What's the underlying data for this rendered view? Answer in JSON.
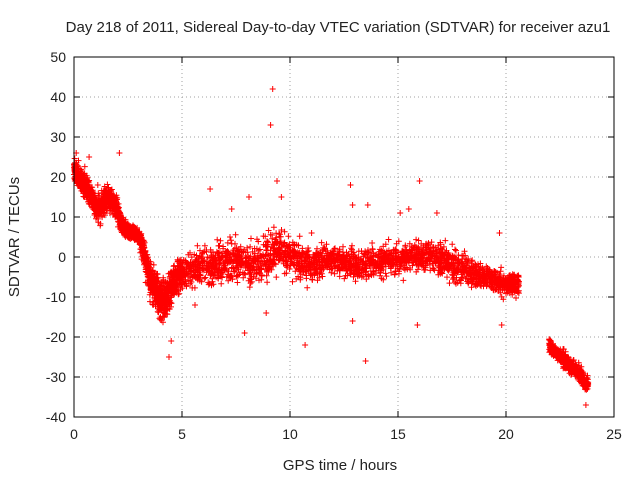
{
  "chart_data": {
    "type": "scatter",
    "title": "Day 218 of 2011, Sidereal Day-to-day VTEC variation (SDTVAR) for receiver azu1",
    "xlabel": "GPS time / hours",
    "ylabel": "SDTVAR / TECUs",
    "xlim": [
      0,
      25
    ],
    "ylim": [
      -40,
      50
    ],
    "xticks": [
      0,
      5,
      10,
      15,
      20,
      25
    ],
    "yticks": [
      -40,
      -30,
      -20,
      -10,
      0,
      10,
      20,
      30,
      40,
      50
    ],
    "grid": true,
    "marker": "+",
    "series_color": "#ff0000",
    "series": [
      {
        "name": "SDTVAR",
        "x": [
          0.0,
          0.2,
          0.4,
          0.6,
          0.8,
          1.0,
          1.2,
          1.4,
          1.6,
          1.8,
          2.0,
          2.2,
          2.4,
          2.6,
          2.8,
          3.0,
          3.2,
          3.4,
          3.6,
          3.8,
          4.0,
          4.2,
          4.4,
          4.6,
          4.8,
          5.0,
          5.5,
          6.0,
          6.5,
          7.0,
          7.5,
          8.0,
          8.5,
          9.0,
          9.5,
          10.0,
          10.5,
          11.0,
          11.5,
          12.0,
          12.5,
          13.0,
          13.5,
          14.0,
          14.5,
          15.0,
          15.5,
          16.0,
          16.5,
          17.0,
          17.5,
          18.0,
          18.5,
          19.0,
          19.5,
          20.0,
          20.3,
          20.6,
          22.0,
          22.3,
          22.6,
          22.9,
          23.2,
          23.5,
          23.8
        ],
        "y": [
          22,
          20,
          19,
          17,
          15,
          13,
          12,
          14,
          15,
          14,
          12,
          8,
          7,
          6,
          6,
          5,
          2,
          -3,
          -6,
          -8,
          -10,
          -11,
          -9,
          -6,
          -5,
          -4,
          -3,
          -2,
          -2,
          -1,
          -1,
          -2,
          -1,
          0,
          2,
          0,
          -1,
          -2,
          -1,
          -1,
          -1,
          -2,
          -2,
          -1,
          -1,
          -1,
          0,
          0,
          0,
          -1,
          -2,
          -3,
          -4,
          -5,
          -6,
          -7,
          -7,
          -7,
          -22,
          -24,
          -25,
          -27,
          -28,
          -30,
          -32
        ],
        "spread": [
          3,
          3,
          3,
          3,
          3,
          3,
          3,
          3,
          3,
          3,
          3,
          2,
          2,
          2,
          2,
          2,
          3,
          4,
          5,
          5,
          5,
          5,
          5,
          4,
          4,
          4,
          4,
          5,
          5,
          5,
          5,
          5,
          5,
          6,
          5,
          5,
          5,
          4,
          4,
          4,
          4,
          4,
          4,
          4,
          4,
          4,
          4,
          4,
          4,
          4,
          4,
          4,
          4,
          3,
          3,
          3,
          3,
          3,
          2,
          2,
          2,
          2,
          2,
          2,
          2
        ],
        "outliers": [
          [
            2.1,
            26
          ],
          [
            4.4,
            -25
          ],
          [
            4.5,
            -21
          ],
          [
            6.3,
            17
          ],
          [
            7.9,
            -19
          ],
          [
            8.1,
            15
          ],
          [
            9.2,
            42
          ],
          [
            9.1,
            33
          ],
          [
            9.4,
            19
          ],
          [
            9.6,
            15
          ],
          [
            8.9,
            -14
          ],
          [
            10.7,
            -22
          ],
          [
            12.8,
            18
          ],
          [
            12.9,
            13
          ],
          [
            12.9,
            -16
          ],
          [
            13.5,
            -26
          ],
          [
            13.6,
            13
          ],
          [
            15.5,
            12
          ],
          [
            15.9,
            -17
          ],
          [
            16.0,
            19
          ],
          [
            16.8,
            11
          ],
          [
            19.7,
            6
          ],
          [
            19.8,
            -17
          ],
          [
            23.7,
            -37
          ],
          [
            0.1,
            26
          ],
          [
            0.7,
            25
          ],
          [
            1.1,
            18
          ],
          [
            15.1,
            11
          ],
          [
            7.3,
            12
          ],
          [
            5.6,
            -12
          ],
          [
            11.0,
            6
          ]
        ]
      }
    ]
  }
}
